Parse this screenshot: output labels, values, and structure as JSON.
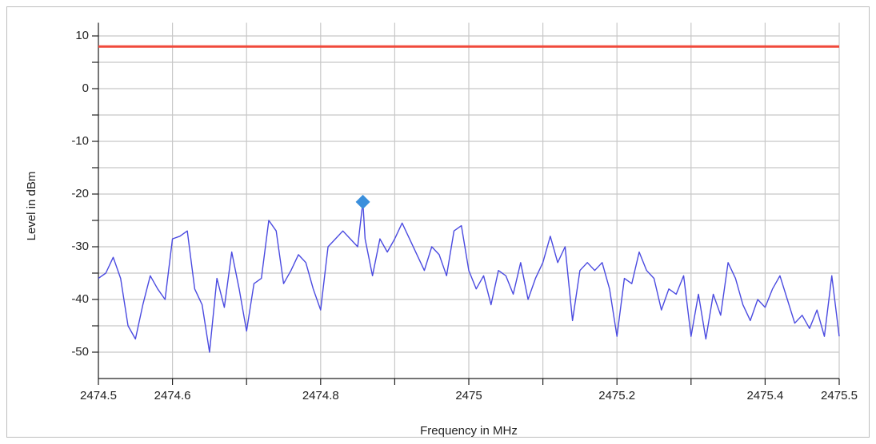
{
  "chart_data": {
    "type": "line",
    "xlabel": "Frequency in MHz",
    "ylabel": "Level in dBm",
    "xlim": [
      2474.5,
      2475.5
    ],
    "ylim": [
      -55,
      12.5
    ],
    "xticks": [
      2474.5,
      2474.6,
      2474.8,
      2475,
      2475.2,
      2475.4,
      2475.5
    ],
    "xminor": [
      2474.7,
      2474.9,
      2475.1,
      2475.3
    ],
    "yticks": [
      10,
      0,
      -10,
      -20,
      -30,
      -40,
      -50
    ],
    "yminor": [
      5,
      -5,
      -15,
      -25,
      -35,
      -45
    ],
    "grid": true,
    "limit": {
      "value": 8,
      "color": "#f04a3c"
    },
    "marker": {
      "x": 2474.857,
      "y": -21.5,
      "color": "#3a8fdc"
    },
    "x": [
      2474.5,
      2474.51,
      2474.52,
      2474.53,
      2474.54,
      2474.55,
      2474.56,
      2474.57,
      2474.58,
      2474.59,
      2474.6,
      2474.61,
      2474.62,
      2474.63,
      2474.64,
      2474.65,
      2474.66,
      2474.67,
      2474.68,
      2474.69,
      2474.7,
      2474.71,
      2474.72,
      2474.73,
      2474.74,
      2474.75,
      2474.76,
      2474.77,
      2474.78,
      2474.79,
      2474.8,
      2474.81,
      2474.82,
      2474.83,
      2474.84,
      2474.85,
      2474.857,
      2474.86,
      2474.87,
      2474.88,
      2474.89,
      2474.9,
      2474.91,
      2474.92,
      2474.93,
      2474.94,
      2474.95,
      2474.96,
      2474.97,
      2474.98,
      2474.99,
      2475.0,
      2475.01,
      2475.02,
      2475.03,
      2475.04,
      2475.05,
      2475.06,
      2475.07,
      2475.08,
      2475.09,
      2475.1,
      2475.11,
      2475.12,
      2475.13,
      2475.14,
      2475.15,
      2475.16,
      2475.17,
      2475.18,
      2475.19,
      2475.2,
      2475.21,
      2475.22,
      2475.23,
      2475.24,
      2475.25,
      2475.26,
      2475.27,
      2475.28,
      2475.29,
      2475.3,
      2475.31,
      2475.32,
      2475.33,
      2475.34,
      2475.35,
      2475.36,
      2475.37,
      2475.38,
      2475.39,
      2475.4,
      2475.41,
      2475.42,
      2475.43,
      2475.44,
      2475.45,
      2475.46,
      2475.47,
      2475.48,
      2475.49,
      2475.5
    ],
    "series": [
      {
        "color": "#4a4ae0",
        "values": [
          -36,
          -35,
          -32,
          -36,
          -45,
          -47.5,
          -41,
          -35.5,
          -38,
          -40,
          -28.5,
          -28,
          -27,
          -38,
          -41,
          -50,
          -36,
          -41.5,
          -31,
          -38,
          -46,
          -37,
          -36,
          -25,
          -27,
          -37,
          -34.5,
          -31.5,
          -33,
          -38,
          -42,
          -30,
          -28.5,
          -27,
          -28.5,
          -30,
          -21.5,
          -28.5,
          -35.5,
          -28.5,
          -31,
          -28.5,
          -25.5,
          -28.5,
          -31.5,
          -34.5,
          -30,
          -31.5,
          -35.5,
          -27,
          -26,
          -34.5,
          -38,
          -35.5,
          -41,
          -34.5,
          -35.5,
          -39,
          -33,
          -40,
          -36,
          -33,
          -28,
          -33,
          -30,
          -44,
          -34.5,
          -33,
          -34.5,
          -33,
          -38,
          -47,
          -36,
          -37,
          -31,
          -34.5,
          -36,
          -42,
          -38,
          -39,
          -35.5,
          -47,
          -39,
          -47.5,
          -39,
          -43,
          -33,
          -36,
          -41,
          -44,
          -40,
          -41.5,
          -38,
          -35.5,
          -40,
          -44.5,
          -43,
          -45.5,
          -42,
          -47,
          -35.5,
          -47
        ]
      }
    ]
  }
}
